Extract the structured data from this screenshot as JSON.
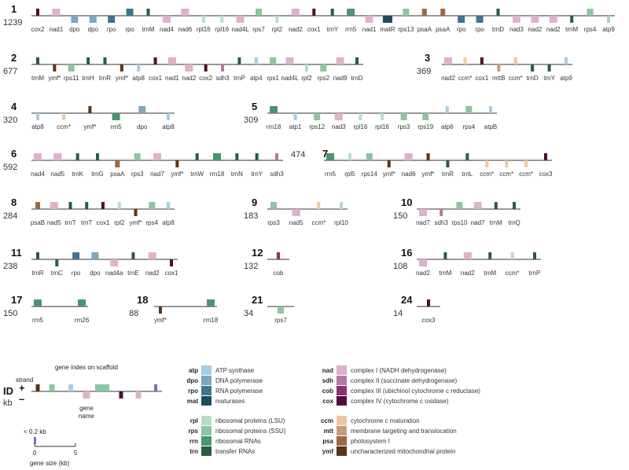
{
  "colors": {
    "atp": "#a8cce0",
    "dpo": "#7ba6c4",
    "rpo": "#3e7590",
    "mat": "#1d4c5e",
    "rpl": "#b7dcc6",
    "rps": "#8cc5a1",
    "rrn": "#4a9470",
    "trn": "#2a5c40",
    "nad": "#e0b0cc",
    "sdh": "#b577a3",
    "cob": "#8a3070",
    "cox": "#520b3a",
    "ccm": "#edc8a6",
    "mtt": "#c89a7a",
    "psa": "#9c6a44",
    "ymf": "#5a3418",
    "key_atp": "#a8cce0",
    "key_rps": "#8cc5a1",
    "key_cox": "#520b3a",
    "key_nad": "#e0b0cc",
    "key_ymf": "#5a3418",
    "key_small": "#7b6fb0"
  },
  "scaffolds": [
    {
      "id": "1",
      "length": "1239",
      "genes": [
        {
          "name": "cox2",
          "t": "cox",
          "s": 1
        },
        {
          "name": "nad1",
          "t": "nad",
          "s": 1
        },
        {
          "name": "dpo",
          "t": "dpo",
          "s": -1
        },
        {
          "name": "dpo",
          "t": "dpo",
          "s": -1
        },
        {
          "name": "rpo",
          "t": "rpo",
          "s": -1
        },
        {
          "name": "rpo",
          "t": "rpo",
          "s": 1
        },
        {
          "name": "trnM",
          "t": "trn",
          "s": 1
        },
        {
          "name": "nad4",
          "t": "nad",
          "s": -1
        },
        {
          "name": "nad6",
          "t": "nad",
          "s": 1
        },
        {
          "name": "rpl16",
          "t": "rpl",
          "s": -1
        },
        {
          "name": "rpl16",
          "t": "rpl",
          "s": -1
        },
        {
          "name": "nad4L",
          "t": "nad",
          "s": -1
        },
        {
          "name": "rps7",
          "t": "rps",
          "s": 1
        },
        {
          "name": "rpl2",
          "t": "rpl",
          "s": -1
        },
        {
          "name": "nad2",
          "t": "nad",
          "s": 1
        },
        {
          "name": "cox1",
          "t": "cox",
          "s": 1
        },
        {
          "name": "trnY",
          "t": "trn",
          "s": 1
        },
        {
          "name": "rrn5",
          "t": "rrn",
          "s": 1
        },
        {
          "name": "nad1",
          "t": "nad",
          "s": -1
        },
        {
          "name": "matR",
          "t": "mat",
          "s": -1
        },
        {
          "name": "rps13",
          "t": "rps",
          "s": 1
        },
        {
          "name": "psaA",
          "t": "psa",
          "s": 1
        },
        {
          "name": "psaA",
          "t": "psa",
          "s": 1
        },
        {
          "name": "rpo",
          "t": "rpo",
          "s": -1
        },
        {
          "name": "rpo",
          "t": "rpo",
          "s": -1
        },
        {
          "name": "trnD",
          "t": "trn",
          "s": 1
        },
        {
          "name": "nad3",
          "t": "nad",
          "s": -1
        },
        {
          "name": "nad2",
          "t": "nad",
          "s": -1
        },
        {
          "name": "nad2",
          "t": "nad",
          "s": -1
        },
        {
          "name": "trnM",
          "t": "trn",
          "s": -1
        },
        {
          "name": "rps4",
          "t": "rps",
          "s": 1
        },
        {
          "name": "atp9",
          "t": "atp",
          "s": -1
        }
      ]
    },
    {
      "id": "2",
      "length": "677",
      "genes": [
        {
          "name": "trnM",
          "t": "trn",
          "s": 1
        },
        {
          "name": "ymf*",
          "t": "ymf",
          "s": -1
        },
        {
          "name": "rps11",
          "t": "rps",
          "s": -1
        },
        {
          "name": "trnH",
          "t": "trn",
          "s": 1
        },
        {
          "name": "trnR",
          "t": "trn",
          "s": 1
        },
        {
          "name": "ymf*",
          "t": "ymf",
          "s": -1
        },
        {
          "name": "atp8",
          "t": "atp",
          "s": -1
        },
        {
          "name": "cox1",
          "t": "cox",
          "s": 1
        },
        {
          "name": "nad1",
          "t": "nad",
          "s": 1
        },
        {
          "name": "nad2",
          "t": "nad",
          "s": -1
        },
        {
          "name": "cox2",
          "t": "cox",
          "s": -1
        },
        {
          "name": "sdh3",
          "t": "sdh",
          "s": -1
        },
        {
          "name": "trnP",
          "t": "trn",
          "s": 1
        },
        {
          "name": "atp4",
          "t": "atp",
          "s": 1
        },
        {
          "name": "rps1",
          "t": "rps",
          "s": 1
        },
        {
          "name": "nad4L",
          "t": "nad",
          "s": 1
        },
        {
          "name": "rpl2",
          "t": "rpl",
          "s": -1
        },
        {
          "name": "rps2",
          "t": "rps",
          "s": -1
        },
        {
          "name": "nad9",
          "t": "nad",
          "s": 1
        },
        {
          "name": "trnD",
          "t": "trn",
          "s": 1
        }
      ]
    },
    {
      "id": "3",
      "length": "369",
      "genes": [
        {
          "name": "nad2",
          "t": "nad",
          "s": 1
        },
        {
          "name": "ccm*",
          "t": "ccm",
          "s": 1
        },
        {
          "name": "cox1",
          "t": "cox",
          "s": 1
        },
        {
          "name": "mttB",
          "t": "mtt",
          "s": -1
        },
        {
          "name": "ccm*",
          "t": "ccm",
          "s": 1
        },
        {
          "name": "trnD",
          "t": "trn",
          "s": -1
        },
        {
          "name": "trnY",
          "t": "trn",
          "s": -1
        },
        {
          "name": "atp9",
          "t": "atp",
          "s": 1
        }
      ]
    },
    {
      "id": "4",
      "length": "320",
      "genes": [
        {
          "name": "atp8",
          "t": "atp",
          "s": -1
        },
        {
          "name": "ccm*",
          "t": "ccm",
          "s": -1
        },
        {
          "name": "ymf*",
          "t": "ymf",
          "s": 1
        },
        {
          "name": "rrn5",
          "t": "rrn",
          "s": -1
        },
        {
          "name": "dpo",
          "t": "dpo",
          "s": 1
        },
        {
          "name": "atp8",
          "t": "atp",
          "s": -1
        }
      ]
    },
    {
      "id": "5",
      "length": "309",
      "genes": [
        {
          "name": "rrn18",
          "t": "rrn",
          "s": 1
        },
        {
          "name": "atp1",
          "t": "atp",
          "s": -1
        },
        {
          "name": "rps12",
          "t": "rps",
          "s": -1
        },
        {
          "name": "nad3",
          "t": "nad",
          "s": -1
        },
        {
          "name": "rpl16",
          "t": "rpl",
          "s": -1
        },
        {
          "name": "rpl16",
          "t": "rpl",
          "s": -1
        },
        {
          "name": "rps3",
          "t": "rps",
          "s": -1
        },
        {
          "name": "rps19",
          "t": "rps",
          "s": -1
        },
        {
          "name": "atp6",
          "t": "atp",
          "s": 1
        },
        {
          "name": "rps4",
          "t": "rps",
          "s": 1
        },
        {
          "name": "atpB",
          "t": "atp",
          "s": 1
        }
      ]
    },
    {
      "id": "6",
      "length": "592",
      "genes": [
        {
          "name": "nad4",
          "t": "nad",
          "s": 1
        },
        {
          "name": "nad5",
          "t": "nad",
          "s": 1
        },
        {
          "name": "trnK",
          "t": "trn",
          "s": 1
        },
        {
          "name": "trnG",
          "t": "trn",
          "s": 1
        },
        {
          "name": "psaA",
          "t": "psa",
          "s": -1
        },
        {
          "name": "rps3",
          "t": "rps",
          "s": 1
        },
        {
          "name": "nad7",
          "t": "nad",
          "s": 1
        },
        {
          "name": "ymf*",
          "t": "ymf",
          "s": -1
        },
        {
          "name": "trnW",
          "t": "trn",
          "s": 1
        },
        {
          "name": "rrn18",
          "t": "rrn",
          "s": 1
        },
        {
          "name": "trnN",
          "t": "trn",
          "s": 1
        },
        {
          "name": "trnY",
          "t": "trn",
          "s": 1
        },
        {
          "name": "sdh3",
          "t": "sdh",
          "s": 1
        }
      ]
    },
    {
      "id": "7",
      "length": "474",
      "genes": [
        {
          "name": "rrn5",
          "t": "rrn",
          "s": 1
        },
        {
          "name": "rpl5",
          "t": "rpl",
          "s": 1
        },
        {
          "name": "rps14",
          "t": "rps",
          "s": 1
        },
        {
          "name": "ymf*",
          "t": "ymf",
          "s": -1
        },
        {
          "name": "nad6",
          "t": "nad",
          "s": 1
        },
        {
          "name": "ymf*",
          "t": "ymf",
          "s": 1
        },
        {
          "name": "trnR",
          "t": "trn",
          "s": -1
        },
        {
          "name": "trnL",
          "t": "trn",
          "s": 1
        },
        {
          "name": "ccm*",
          "t": "ccm",
          "s": -1
        },
        {
          "name": "ccm*",
          "t": "ccm",
          "s": -1
        },
        {
          "name": "ccm*",
          "t": "ccm",
          "s": -1
        },
        {
          "name": "cox3",
          "t": "cox",
          "s": 1
        }
      ]
    },
    {
      "id": "8",
      "length": "284",
      "genes": [
        {
          "name": "psaB",
          "t": "psa",
          "s": 1
        },
        {
          "name": "nad5",
          "t": "nad",
          "s": 1
        },
        {
          "name": "trnT",
          "t": "trn",
          "s": 1
        },
        {
          "name": "trnT",
          "t": "trn",
          "s": 1
        },
        {
          "name": "cox1",
          "t": "cox",
          "s": 1
        },
        {
          "name": "rpl2",
          "t": "rpl",
          "s": 1
        },
        {
          "name": "ymf*",
          "t": "ymf",
          "s": -1
        },
        {
          "name": "rps4",
          "t": "rps",
          "s": 1
        },
        {
          "name": "atp8",
          "t": "atp",
          "s": 1
        }
      ]
    },
    {
      "id": "9",
      "length": "183",
      "genes": [
        {
          "name": "rps3",
          "t": "rps",
          "s": 1
        },
        {
          "name": "nad5",
          "t": "nad",
          "s": -1
        },
        {
          "name": "ccm*",
          "t": "ccm",
          "s": 1
        },
        {
          "name": "rpl10",
          "t": "rpl",
          "s": 1
        }
      ]
    },
    {
      "id": "10",
      "length": "150",
      "genes": [
        {
          "name": "nad7",
          "t": "nad",
          "s": -1
        },
        {
          "name": "sdh3",
          "t": "sdh",
          "s": -1
        },
        {
          "name": "rps10",
          "t": "rps",
          "s": 1
        },
        {
          "name": "nad7",
          "t": "nad",
          "s": 1
        },
        {
          "name": "trnM",
          "t": "trn",
          "s": 1
        },
        {
          "name": "trnQ",
          "t": "trn",
          "s": 1
        }
      ]
    },
    {
      "id": "11",
      "length": "238",
      "genes": [
        {
          "name": "trnR",
          "t": "trn",
          "s": 1
        },
        {
          "name": "trnC",
          "t": "trn",
          "s": -1
        },
        {
          "name": "rpo",
          "t": "rpo",
          "s": 1
        },
        {
          "name": "dpo",
          "t": "dpo",
          "s": 1
        },
        {
          "name": "nad4a",
          "t": "nad",
          "s": -1
        },
        {
          "name": "trnE",
          "t": "trn",
          "s": 1
        },
        {
          "name": "nad2",
          "t": "nad",
          "s": 1
        },
        {
          "name": "cox1",
          "t": "cox",
          "s": -1
        }
      ]
    },
    {
      "id": "12",
      "length": "132",
      "genes": [
        {
          "name": "cob",
          "t": "cob",
          "s": 1
        }
      ]
    },
    {
      "id": "16",
      "length": "108",
      "genes": [
        {
          "name": "nad2",
          "t": "nad",
          "s": -1
        },
        {
          "name": "trnM",
          "t": "trn",
          "s": 1
        },
        {
          "name": "nad2",
          "t": "nad",
          "s": 1
        },
        {
          "name": "trnM",
          "t": "trn",
          "s": 1
        },
        {
          "name": "ccm*",
          "t": "ccm",
          "s": 1
        },
        {
          "name": "trnP",
          "t": "trn",
          "s": 1
        }
      ]
    },
    {
      "id": "17",
      "length": "150",
      "genes": [
        {
          "name": "rrn5",
          "t": "rrn",
          "s": 1
        },
        {
          "name": "rrn26",
          "t": "rrn",
          "s": 1
        }
      ]
    },
    {
      "id": "18",
      "length": "88",
      "genes": [
        {
          "name": "ymf*",
          "t": "ymf",
          "s": -1
        },
        {
          "name": "rrn18",
          "t": "rrn",
          "s": 1
        }
      ]
    },
    {
      "id": "21",
      "length": "34",
      "genes": [
        {
          "name": "rps7",
          "t": "rps",
          "s": -1
        }
      ]
    },
    {
      "id": "24",
      "length": "14",
      "genes": [
        {
          "name": "cox3",
          "t": "cox",
          "s": 1
        }
      ]
    }
  ],
  "legend": {
    "key_title": "gene index on scaffold",
    "strand": "strand",
    "plus": "+",
    "minus": "–",
    "id": "ID",
    "kb": "kb",
    "gene": "gene",
    "name": "name",
    "small": "< 0.2 kb",
    "scale_0": "0",
    "scale_5": "5",
    "gene_size": "gene size (kb)",
    "groups": [
      [
        {
          "abbr": "atp",
          "t": "atp",
          "desc": "ATP synthase"
        },
        {
          "abbr": "dpo",
          "t": "dpo",
          "desc": "DNA polymerase"
        },
        {
          "abbr": "rpo",
          "t": "rpo",
          "desc": "RNA polymerase"
        },
        {
          "abbr": "mat",
          "t": "mat",
          "desc": "maturases"
        }
      ],
      [
        {
          "abbr": "rpl",
          "t": "rpl",
          "desc": "ribosomal proteins (LSU)"
        },
        {
          "abbr": "rps",
          "t": "rps",
          "desc": "ribosomal proteins (SSU)"
        },
        {
          "abbr": "rrn",
          "t": "rrn",
          "desc": "ribosomal RNAs"
        },
        {
          "abbr": "trn",
          "t": "trn",
          "desc": "transfer RNAs"
        }
      ],
      [
        {
          "abbr": "nad",
          "t": "nad",
          "desc": "complex I (NADH dehydrogenase)"
        },
        {
          "abbr": "sdh",
          "t": "sdh",
          "desc": "complex II (succinate dehydrogenase)"
        },
        {
          "abbr": "cob",
          "t": "cob",
          "desc": "complex III (ubichinol cytochrome c reductase)"
        },
        {
          "abbr": "cox",
          "t": "cox",
          "desc": "complex IV (cytochrome c oxidase)"
        }
      ],
      [
        {
          "abbr": "ccm",
          "t": "ccm",
          "desc": "cytochrome c maturation"
        },
        {
          "abbr": "mtt",
          "t": "mtt",
          "desc": "membrane targeting and translocation"
        },
        {
          "abbr": "psa",
          "t": "psa",
          "desc": "photosystem I"
        },
        {
          "abbr": "ymf",
          "t": "ymf",
          "desc": "uncharacterized mitochondrial protein"
        }
      ]
    ]
  }
}
